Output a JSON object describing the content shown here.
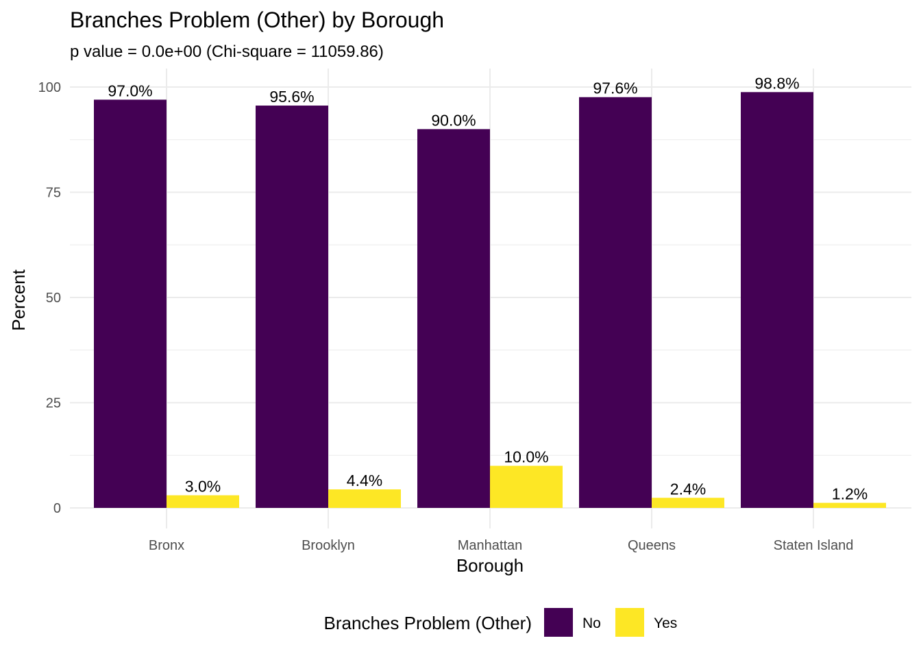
{
  "chart_data": {
    "type": "bar",
    "title": "Branches Problem (Other) by Borough",
    "subtitle": "p value = 0.0e+00 (Chi-square = 11059.86)",
    "xlabel": "Borough",
    "ylabel": "Percent",
    "categories": [
      "Bronx",
      "Brooklyn",
      "Manhattan",
      "Queens",
      "Staten Island"
    ],
    "series": [
      {
        "name": "No",
        "color": "#440154",
        "values": [
          97.0,
          95.6,
          90.0,
          97.6,
          98.8
        ],
        "labels": [
          "97.0%",
          "95.6%",
          "90.0%",
          "97.6%",
          "98.8%"
        ]
      },
      {
        "name": "Yes",
        "color": "#FDE725",
        "values": [
          3.0,
          4.4,
          10.0,
          2.4,
          1.2
        ],
        "labels": [
          "3.0%",
          "4.4%",
          "10.0%",
          "2.4%",
          "1.2%"
        ]
      }
    ],
    "ylim": [
      0,
      100
    ],
    "yticks": [
      0,
      25,
      50,
      75,
      100
    ],
    "grid": true,
    "legend": {
      "title": "Branches Problem (Other)",
      "position": "bottom"
    }
  }
}
